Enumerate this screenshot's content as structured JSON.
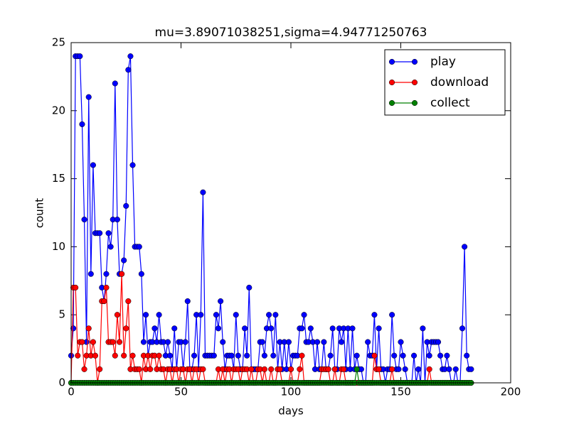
{
  "chart_data": {
    "type": "line",
    "title": "mu=3.89071038251,sigma=4.94771250763",
    "xlabel": "days",
    "ylabel": "count",
    "x": [
      0,
      1,
      2,
      3,
      4,
      5,
      6,
      7,
      8,
      9,
      10,
      11,
      12,
      13,
      14,
      15,
      16,
      17,
      18,
      19,
      20,
      21,
      22,
      23,
      24,
      25,
      26,
      27,
      28,
      29,
      30,
      31,
      32,
      33,
      34,
      35,
      36,
      37,
      38,
      39,
      40,
      41,
      42,
      43,
      44,
      45,
      46,
      47,
      48,
      49,
      50,
      51,
      52,
      53,
      54,
      55,
      56,
      57,
      58,
      59,
      60,
      61,
      62,
      63,
      64,
      65,
      66,
      67,
      68,
      69,
      70,
      71,
      72,
      73,
      74,
      75,
      76,
      77,
      78,
      79,
      80,
      81,
      82,
      83,
      84,
      85,
      86,
      87,
      88,
      89,
      90,
      91,
      92,
      93,
      94,
      95,
      96,
      97,
      98,
      99,
      100,
      101,
      102,
      103,
      104,
      105,
      106,
      107,
      108,
      109,
      110,
      111,
      112,
      113,
      114,
      115,
      116,
      117,
      118,
      119,
      120,
      121,
      122,
      123,
      124,
      125,
      126,
      127,
      128,
      129,
      130,
      131,
      132,
      133,
      134,
      135,
      136,
      137,
      138,
      139,
      140,
      141,
      142,
      143,
      144,
      145,
      146,
      147,
      148,
      149,
      150,
      151,
      152,
      153,
      154,
      155,
      156,
      157,
      158,
      159,
      160,
      161,
      162,
      163,
      164,
      165,
      166,
      167,
      168,
      169,
      170,
      171,
      172,
      173,
      174,
      175,
      176,
      177,
      178,
      179,
      180,
      181,
      182
    ],
    "series": [
      {
        "name": "play",
        "color": "#0000ff",
        "values": [
          2,
          4,
          24,
          24,
          24,
          19,
          12,
          3,
          21,
          8,
          16,
          11,
          11,
          11,
          7,
          6,
          8,
          11,
          10,
          12,
          22,
          12,
          8,
          8,
          9,
          13,
          23,
          24,
          16,
          10,
          10,
          10,
          8,
          3,
          5,
          2,
          3,
          3,
          4,
          3,
          5,
          3,
          3,
          2,
          3,
          2,
          1,
          4,
          1,
          3,
          3,
          1,
          3,
          6,
          1,
          1,
          2,
          5,
          1,
          5,
          14,
          2,
          2,
          2,
          2,
          2,
          5,
          4,
          6,
          3,
          1,
          2,
          2,
          2,
          1,
          5,
          2,
          1,
          1,
          4,
          2,
          7,
          1,
          1,
          1,
          1,
          3,
          3,
          2,
          4,
          5,
          4,
          2,
          5,
          1,
          3,
          1,
          3,
          1,
          3,
          1,
          2,
          2,
          2,
          4,
          4,
          5,
          3,
          3,
          4,
          3,
          1,
          3,
          1,
          1,
          3,
          1,
          1,
          2,
          4,
          1,
          1,
          4,
          3,
          4,
          1,
          4,
          1,
          4,
          1,
          2,
          1,
          1,
          0,
          0,
          3,
          2,
          2,
          5,
          1,
          4,
          1,
          1,
          0,
          1,
          1,
          5,
          2,
          1,
          1,
          3,
          2,
          1,
          0,
          0,
          0,
          2,
          0,
          1,
          0,
          4,
          0,
          3,
          2,
          3,
          3,
          3,
          3,
          2,
          1,
          1,
          2,
          1,
          0,
          0,
          1,
          0,
          0,
          4,
          10,
          2,
          1,
          1
        ]
      },
      {
        "name": "download",
        "color": "#ff0000",
        "values": [
          0,
          7,
          7,
          2,
          3,
          3,
          1,
          2,
          4,
          2,
          3,
          2,
          0,
          1,
          6,
          6,
          7,
          3,
          3,
          3,
          2,
          5,
          3,
          8,
          2,
          4,
          6,
          1,
          2,
          1,
          1,
          1,
          0,
          2,
          1,
          2,
          1,
          2,
          2,
          1,
          2,
          1,
          1,
          0,
          1,
          1,
          0,
          1,
          1,
          0,
          1,
          1,
          0,
          1,
          1,
          0,
          1,
          1,
          0,
          1,
          1,
          0,
          0,
          0,
          0,
          0,
          0,
          1,
          0,
          1,
          0,
          1,
          1,
          0,
          1,
          1,
          1,
          0,
          1,
          1,
          1,
          0,
          1,
          0,
          0,
          1,
          1,
          0,
          1,
          0,
          0,
          1,
          0,
          0,
          1,
          1,
          0,
          0,
          0,
          0,
          1,
          0,
          0,
          0,
          1,
          2,
          0,
          0,
          0,
          0,
          0,
          0,
          0,
          0,
          1,
          1,
          1,
          1,
          0,
          0,
          1,
          0,
          0,
          1,
          1,
          0,
          0,
          0,
          0,
          0,
          0,
          0,
          0,
          0,
          0,
          0,
          0,
          0,
          2,
          1,
          1,
          0,
          0,
          0,
          0,
          0,
          1,
          0,
          0,
          0,
          0,
          0,
          0,
          0,
          0,
          0,
          0,
          0,
          0,
          0,
          0,
          0,
          0,
          1,
          0,
          0,
          0,
          0,
          0,
          0,
          0,
          0,
          0,
          0,
          0,
          0,
          0,
          0,
          0,
          0,
          0,
          0,
          0
        ]
      },
      {
        "name": "collect",
        "color": "#008000",
        "values": [
          0,
          0,
          0,
          0,
          0,
          0,
          0,
          0,
          0,
          0,
          0,
          0,
          0,
          0,
          0,
          0,
          0,
          0,
          0,
          0,
          0,
          0,
          0,
          0,
          0,
          0,
          0,
          0,
          0,
          0,
          0,
          0,
          0,
          0,
          0,
          0,
          0,
          0,
          0,
          0,
          0,
          0,
          0,
          0,
          0,
          0,
          0,
          0,
          0,
          0,
          0,
          0,
          0,
          0,
          0,
          0,
          0,
          0,
          0,
          0,
          0,
          0,
          0,
          0,
          0,
          0,
          0,
          0,
          0,
          0,
          0,
          0,
          0,
          0,
          0,
          0,
          0,
          0,
          0,
          0,
          0,
          0,
          0,
          0,
          0,
          0,
          0,
          0,
          0,
          0,
          0,
          0,
          0,
          0,
          0,
          0,
          0,
          0,
          0,
          0,
          0,
          0,
          0,
          0,
          0,
          0,
          0,
          0,
          0,
          0,
          0,
          0,
          0,
          0,
          0,
          0,
          0,
          0,
          0,
          0,
          0,
          0,
          0,
          0,
          0,
          0,
          0,
          0,
          0,
          0,
          1,
          0,
          0,
          0,
          0,
          0,
          0,
          0,
          0,
          0,
          0,
          0,
          0,
          0,
          0,
          0,
          0,
          0,
          0,
          0,
          0,
          0,
          0,
          0,
          0,
          0,
          0,
          0,
          0,
          0,
          0,
          0,
          0,
          0,
          0,
          0,
          0,
          0,
          0,
          0,
          0,
          0,
          0,
          0,
          0,
          0,
          0,
          0,
          0,
          0,
          0,
          0,
          0
        ]
      }
    ],
    "xlim": [
      0,
      200
    ],
    "xticks": [
      0,
      50,
      100,
      150,
      200
    ],
    "ylim": [
      0,
      25
    ],
    "yticks": [
      0,
      5,
      10,
      15,
      20,
      25
    ],
    "legend": "upper right"
  }
}
